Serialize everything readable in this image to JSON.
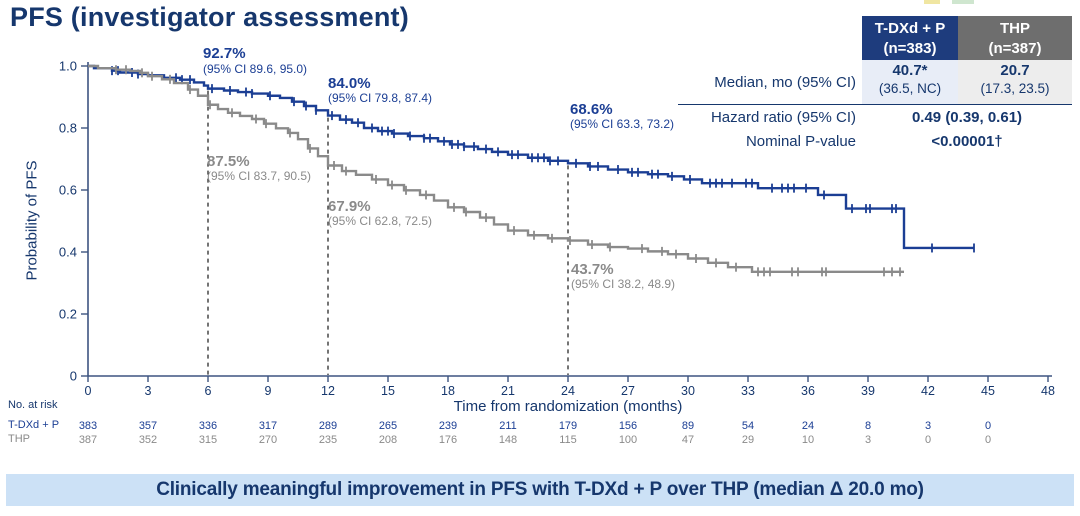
{
  "title": "PFS (investigator assessment)",
  "banner": "Clinically meaningful improvement in PFS with T-DXd + P over THP (median Δ 20.0 mo)",
  "colors": {
    "navy": "#16376d",
    "blue": "#1b3e94",
    "gray": "#8a8a8a",
    "axis": "#3d5480",
    "dash": "#2a2a2a",
    "banner_bg": "#cce1f6",
    "hdr_blue": "#1e3c7d",
    "hdr_gray": "#6e6e6e",
    "cell_blue": "#e8edf7",
    "cell_gray": "#ededed"
  },
  "stats_table": {
    "columns": [
      {
        "line1": "T-DXd + P",
        "line2": "(n=383)"
      },
      {
        "line1": "THP",
        "line2": "(n=387)"
      }
    ],
    "rows": {
      "median": {
        "label": "Median, mo (95% CI)",
        "tdxd_value": "40.7*",
        "tdxd_ci": "(36.5, NC)",
        "thp_value": "20.7",
        "thp_ci": "(17.3, 23.5)"
      },
      "hazard": {
        "label": "Hazard ratio (95% CI)",
        "value": "0.49 (0.39, 0.61)"
      },
      "pvalue": {
        "label": "Nominal P-value",
        "value": "<0.00001†"
      }
    }
  },
  "at_risk": {
    "title": "No. at risk",
    "months": [
      0,
      3,
      6,
      9,
      12,
      15,
      18,
      21,
      24,
      27,
      30,
      33,
      36,
      39,
      42,
      45
    ],
    "rows": [
      {
        "label": "T-DXd + P",
        "values": [
          "383",
          "357",
          "336",
          "317",
          "289",
          "265",
          "239",
          "211",
          "179",
          "156",
          "89",
          "54",
          "24",
          "8",
          "3",
          "0"
        ]
      },
      {
        "label": "THP",
        "values": [
          "387",
          "352",
          "315",
          "270",
          "235",
          "208",
          "176",
          "148",
          "115",
          "100",
          "47",
          "29",
          "10",
          "3",
          "0",
          "0"
        ]
      }
    ]
  },
  "chart_data": {
    "type": "line",
    "subtype": "kaplan-meier",
    "title": "PFS (investigator assessment)",
    "xlabel": "Time from randomization (months)",
    "ylabel": "Probability of PFS",
    "xlim": [
      0,
      48
    ],
    "ylim": [
      0,
      1
    ],
    "grid": false,
    "legend": "none",
    "xticks": [
      0,
      3,
      6,
      9,
      12,
      15,
      18,
      21,
      24,
      27,
      30,
      33,
      36,
      39,
      42,
      45,
      48
    ],
    "yticks": [
      {
        "v": 1.0,
        "label": "1.0"
      },
      {
        "v": 0.8,
        "label": "0.8"
      },
      {
        "v": 0.6,
        "label": "0.6"
      },
      {
        "v": 0.4,
        "label": "0.4"
      },
      {
        "v": 0.2,
        "label": "0.2"
      },
      {
        "v": 0,
        "label": "0"
      }
    ],
    "dashed_guides_months": [
      6,
      12,
      24
    ],
    "series": [
      {
        "id": "tdxd",
        "name": "T-DXd + P",
        "color": "#1b3e94",
        "steps": [
          [
            0,
            1.0
          ],
          [
            0.3,
            0.993
          ],
          [
            1.2,
            0.985
          ],
          [
            1.6,
            0.979
          ],
          [
            2.5,
            0.974
          ],
          [
            3.0,
            0.97
          ],
          [
            3.8,
            0.962
          ],
          [
            4.6,
            0.956
          ],
          [
            5.3,
            0.947
          ],
          [
            5.8,
            0.937
          ],
          [
            6.0,
            0.927
          ],
          [
            6.8,
            0.921
          ],
          [
            7.5,
            0.916
          ],
          [
            8.2,
            0.911
          ],
          [
            9.0,
            0.904
          ],
          [
            9.6,
            0.897
          ],
          [
            10.2,
            0.885
          ],
          [
            10.8,
            0.871
          ],
          [
            11.4,
            0.857
          ],
          [
            12.0,
            0.84
          ],
          [
            12.6,
            0.827
          ],
          [
            13.2,
            0.817
          ],
          [
            13.8,
            0.8
          ],
          [
            14.5,
            0.79
          ],
          [
            15.2,
            0.782
          ],
          [
            16.0,
            0.774
          ],
          [
            16.8,
            0.767
          ],
          [
            17.5,
            0.757
          ],
          [
            18.1,
            0.747
          ],
          [
            18.8,
            0.74
          ],
          [
            19.5,
            0.732
          ],
          [
            20.2,
            0.723
          ],
          [
            21.0,
            0.714
          ],
          [
            22.0,
            0.704
          ],
          [
            23.0,
            0.694
          ],
          [
            24.0,
            0.686
          ],
          [
            25.0,
            0.676
          ],
          [
            26.0,
            0.666
          ],
          [
            27.0,
            0.657
          ],
          [
            28.0,
            0.651
          ],
          [
            29.0,
            0.644
          ],
          [
            29.8,
            0.634
          ],
          [
            30.7,
            0.622
          ],
          [
            33.5,
            0.606
          ],
          [
            36.5,
            0.584
          ],
          [
            37.9,
            0.54
          ],
          [
            40.8,
            0.413
          ],
          [
            44.3,
            0.413
          ]
        ],
        "censor_months": [
          1.2,
          1.5,
          2.2,
          2.5,
          4.4,
          4.7,
          5.1,
          6.2,
          7.1,
          7.9,
          8.2,
          9.1,
          10.3,
          10.9,
          11.4,
          12.2,
          12.9,
          13.5,
          14.2,
          14.7,
          15.0,
          15.3,
          16.1,
          16.8,
          17.1,
          17.8,
          18.2,
          18.5,
          18.8,
          19.3,
          19.9,
          20.5,
          21.2,
          21.5,
          22.2,
          22.5,
          22.8,
          23.1,
          23.5,
          24.4,
          25.1,
          25.5,
          26.5,
          27.2,
          27.5,
          28.2,
          28.5,
          29.2,
          30.1,
          31.1,
          31.4,
          31.7,
          32.2,
          32.9,
          33.2,
          34.2,
          34.7,
          35.0,
          35.3,
          35.9,
          36.8,
          38.2,
          38.9,
          39.1,
          40.2,
          40.4,
          42.2,
          44.3
        ],
        "landmarks": [
          {
            "month": 6,
            "value": 92.7,
            "label": "92.7%",
            "ci": "(95% CI 89.6, 95.0)"
          },
          {
            "month": 12,
            "value": 84.0,
            "label": "84.0%",
            "ci": "(95% CI 79.8, 87.4)"
          },
          {
            "month": 24,
            "value": 68.6,
            "label": "68.6%",
            "ci": "(95% CI 63.3, 73.2)"
          }
        ]
      },
      {
        "id": "thp",
        "name": "THP",
        "color": "#8a8a8a",
        "steps": [
          [
            0,
            1.0
          ],
          [
            0.5,
            0.993
          ],
          [
            1.4,
            0.988
          ],
          [
            2.1,
            0.984
          ],
          [
            2.6,
            0.978
          ],
          [
            3.0,
            0.967
          ],
          [
            3.7,
            0.957
          ],
          [
            4.3,
            0.945
          ],
          [
            5.0,
            0.924
          ],
          [
            5.5,
            0.904
          ],
          [
            6.0,
            0.875
          ],
          [
            6.5,
            0.861
          ],
          [
            7.0,
            0.849
          ],
          [
            7.6,
            0.839
          ],
          [
            8.2,
            0.829
          ],
          [
            8.8,
            0.814
          ],
          [
            9.4,
            0.799
          ],
          [
            10.0,
            0.784
          ],
          [
            10.5,
            0.764
          ],
          [
            11.0,
            0.734
          ],
          [
            11.5,
            0.709
          ],
          [
            12.0,
            0.679
          ],
          [
            12.7,
            0.661
          ],
          [
            13.4,
            0.649
          ],
          [
            14.2,
            0.634
          ],
          [
            15.0,
            0.616
          ],
          [
            15.8,
            0.599
          ],
          [
            16.6,
            0.584
          ],
          [
            17.3,
            0.566
          ],
          [
            18.0,
            0.544
          ],
          [
            18.8,
            0.529
          ],
          [
            19.6,
            0.511
          ],
          [
            20.3,
            0.489
          ],
          [
            21.0,
            0.469
          ],
          [
            22.0,
            0.454
          ],
          [
            23.0,
            0.444
          ],
          [
            24.0,
            0.437
          ],
          [
            25.0,
            0.424
          ],
          [
            26.0,
            0.416
          ],
          [
            27.0,
            0.411
          ],
          [
            28.0,
            0.402
          ],
          [
            29.0,
            0.393
          ],
          [
            30.0,
            0.379
          ],
          [
            31.0,
            0.365
          ],
          [
            32.0,
            0.351
          ],
          [
            33.2,
            0.336
          ],
          [
            40.8,
            0.336
          ]
        ],
        "censor_months": [
          1.4,
          1.9,
          2.7,
          3.2,
          4.1,
          5.1,
          6.1,
          7.2,
          8.4,
          8.9,
          10.1,
          11.1,
          12.3,
          12.9,
          14.4,
          15.2,
          15.9,
          16.9,
          18.3,
          18.9,
          19.9,
          21.3,
          22.3,
          23.2,
          24.1,
          25.2,
          26.1,
          27.7,
          28.7,
          29.4,
          30.4,
          31.4,
          32.4,
          33.5,
          33.8,
          34.1,
          35.2,
          35.5,
          36.7,
          36.9,
          39.8,
          40.2,
          40.6
        ],
        "landmarks": [
          {
            "month": 6,
            "value": 87.5,
            "label": "87.5%",
            "ci": "(95% CI 83.7, 90.5)"
          },
          {
            "month": 12,
            "value": 67.9,
            "label": "67.9%",
            "ci": "(95% CI 62.8, 72.5)"
          },
          {
            "month": 24,
            "value": 43.7,
            "label": "43.7%",
            "ci": "(95% CI 38.2, 48.9)"
          }
        ]
      }
    ]
  }
}
